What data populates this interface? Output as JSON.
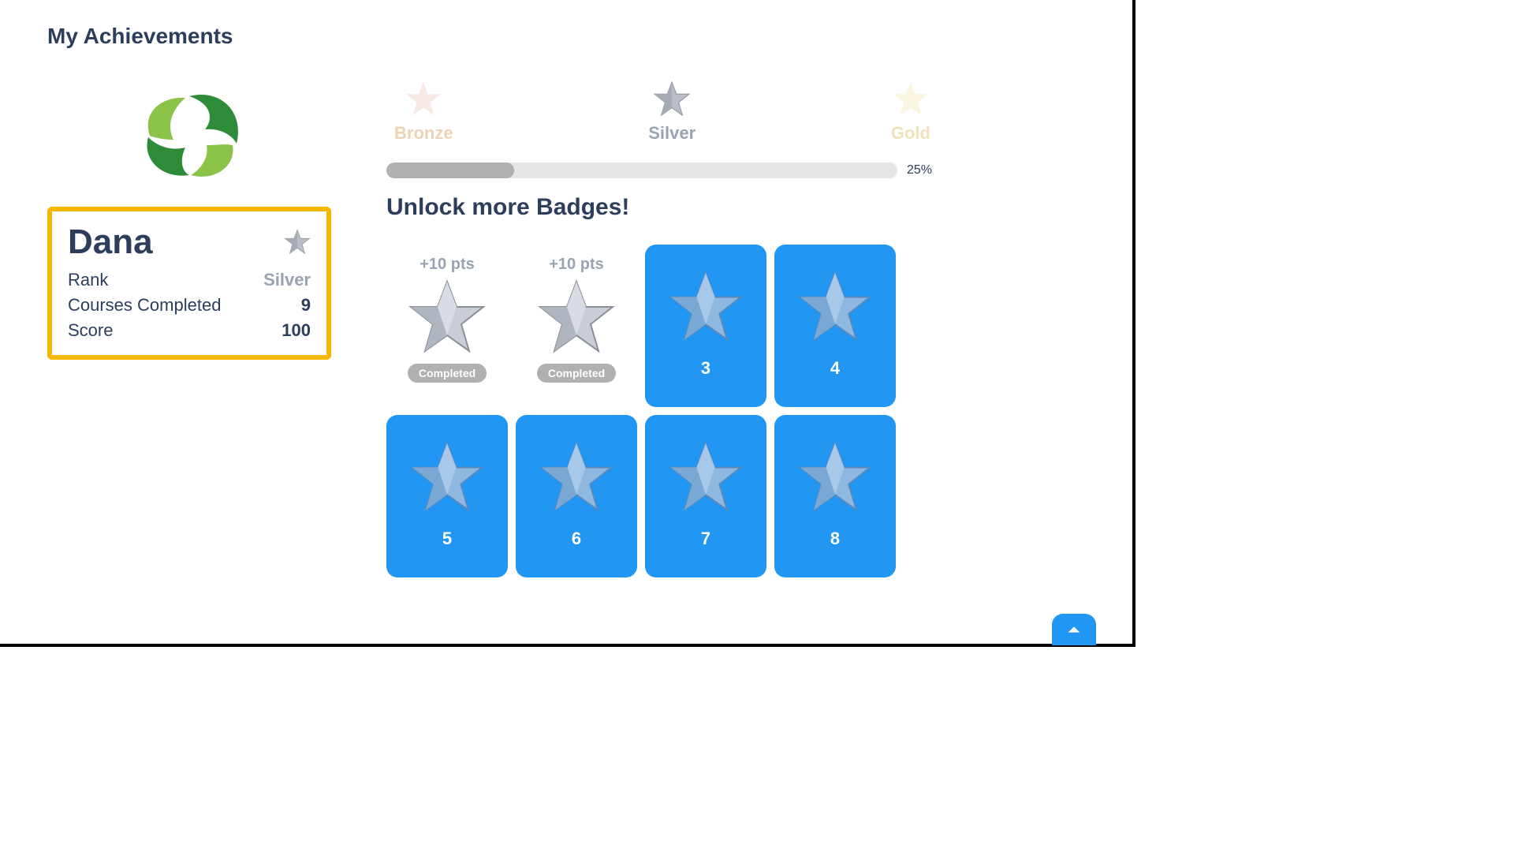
{
  "page": {
    "title": "My Achievements"
  },
  "profile": {
    "name": "Dana",
    "avatar_colors": {
      "dark": "#2e8b3a",
      "light": "#8bc34a"
    },
    "card_border_color": "#f5b800",
    "stats": {
      "rank_label": "Rank",
      "rank_value": "Silver",
      "rank_value_color": "#9aa3b1",
      "courses_label": "Courses Completed",
      "courses_value": "9",
      "score_label": "Score",
      "score_value": "100"
    }
  },
  "tiers": {
    "bronze": {
      "label": "Bronze",
      "color": "rgba(205,127,50,0.35)",
      "star_color": "#e9c4b5",
      "opacity": 0.35
    },
    "silver": {
      "label": "Silver",
      "color": "#9aa3b1",
      "star_color": "#b9bec7"
    },
    "gold": {
      "label": "Gold",
      "color": "rgba(212,175,55,0.35)",
      "star_color": "#f2e4a6",
      "opacity": 0.35
    }
  },
  "progress": {
    "percent": 25,
    "percent_label": "25%",
    "bar_bg": "#e6e6e6",
    "fill_color": "#b0b0b0"
  },
  "badges": {
    "title": "Unlock more Badges!",
    "locked_bg": "#2196f3",
    "items": [
      {
        "state": "completed",
        "pts_label": "+10 pts",
        "status_label": "Completed"
      },
      {
        "state": "completed",
        "pts_label": "+10 pts",
        "status_label": "Completed"
      },
      {
        "state": "locked",
        "number": "3"
      },
      {
        "state": "locked",
        "number": "4"
      },
      {
        "state": "locked",
        "number": "5"
      },
      {
        "state": "locked",
        "number": "6"
      },
      {
        "state": "locked",
        "number": "7"
      },
      {
        "state": "locked",
        "number": "8"
      }
    ]
  },
  "colors": {
    "text_primary": "#2c3e5c",
    "accent": "#2196f3"
  }
}
